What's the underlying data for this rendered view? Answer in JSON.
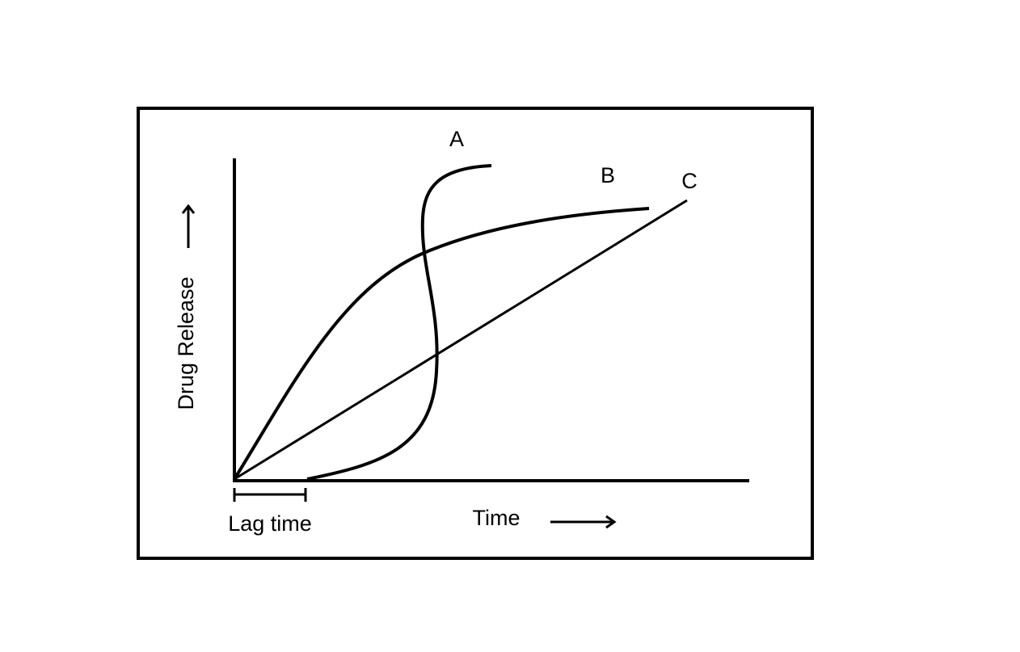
{
  "curves": {
    "a": "A",
    "b": "B",
    "c": "C"
  },
  "y_axis_label": "Drug Release",
  "x_axis_label": "Time",
  "lag_label": "Lag time"
}
